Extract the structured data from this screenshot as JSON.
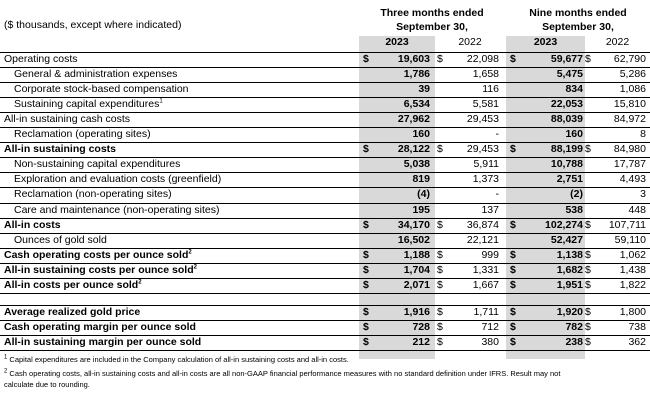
{
  "header": {
    "units_label": "($ thousands, except where indicated)",
    "group_three": [
      "Three months ended",
      "September 30,"
    ],
    "group_nine": [
      "Nine months ended",
      "September 30,"
    ],
    "year_current": "2023",
    "year_prior": "2022"
  },
  "rows": [
    {
      "label": "Operating costs",
      "indent": false,
      "bold": false,
      "dollar": true,
      "values": [
        "19,603",
        "22,098",
        "59,677",
        "62,790"
      ]
    },
    {
      "label": "General & administration expenses",
      "indent": true,
      "bold": false,
      "dollar": false,
      "values": [
        "1,786",
        "1,658",
        "5,475",
        "5,286"
      ]
    },
    {
      "label": "Corporate stock-based compensation",
      "indent": true,
      "bold": false,
      "dollar": false,
      "values": [
        "39",
        "116",
        "834",
        "1,086"
      ]
    },
    {
      "label": "Sustaining capital expenditures",
      "sup": "1",
      "indent": true,
      "bold": false,
      "dollar": false,
      "values": [
        "6,534",
        "5,581",
        "22,053",
        "15,810"
      ]
    },
    {
      "label": "All-in sustaining cash costs",
      "indent": false,
      "bold": false,
      "dollar": false,
      "values": [
        "27,962",
        "29,453",
        "88,039",
        "84,972"
      ]
    },
    {
      "label": "Reclamation (operating sites)",
      "indent": true,
      "bold": false,
      "dollar": false,
      "values": [
        "160",
        "-",
        "160",
        "8"
      ]
    },
    {
      "label": "All-in sustaining costs",
      "indent": false,
      "bold": true,
      "dollar": true,
      "values": [
        "28,122",
        "29,453",
        "88,199",
        "84,980"
      ]
    },
    {
      "label": "Non-sustaining capital expenditures",
      "indent": true,
      "bold": false,
      "dollar": false,
      "values": [
        "5,038",
        "5,911",
        "10,788",
        "17,787"
      ]
    },
    {
      "label": "Exploration and evaluation costs (greenfield)",
      "indent": true,
      "bold": false,
      "dollar": false,
      "values": [
        "819",
        "1,373",
        "2,751",
        "4,493"
      ]
    },
    {
      "label": "Reclamation (non-operating sites)",
      "indent": true,
      "bold": false,
      "dollar": false,
      "values": [
        "(4)",
        "-",
        "(2)",
        "3"
      ]
    },
    {
      "label": "Care and maintenance (non-operating sites)",
      "indent": true,
      "bold": false,
      "dollar": false,
      "values": [
        "195",
        "137",
        "538",
        "448"
      ]
    },
    {
      "label": "All-in costs",
      "indent": false,
      "bold": true,
      "dollar": true,
      "values": [
        "34,170",
        "36,874",
        "102,274",
        "107,711"
      ]
    },
    {
      "label": "Ounces of gold sold",
      "indent": true,
      "bold": false,
      "dollar": false,
      "values": [
        "16,502",
        "22,121",
        "52,427",
        "59,110"
      ]
    },
    {
      "label": "Cash operating costs per ounce sold",
      "sup": "2",
      "indent": false,
      "bold": true,
      "dollar": true,
      "values": [
        "1,188",
        "999",
        "1,138",
        "1,062"
      ]
    },
    {
      "label": "All-in sustaining costs per ounce sold",
      "sup": "2",
      "indent": false,
      "bold": true,
      "dollar": true,
      "values": [
        "1,704",
        "1,331",
        "1,682",
        "1,438"
      ]
    },
    {
      "label": "All-in costs per ounce sold",
      "sup": "2",
      "indent": false,
      "bold": true,
      "dollar": true,
      "values": [
        "2,071",
        "1,667",
        "1,951",
        "1,822"
      ]
    },
    {
      "label": "Average realized gold price",
      "indent": false,
      "bold": true,
      "dollar": true,
      "gap": true,
      "values": [
        "1,916",
        "1,711",
        "1,920",
        "1,800"
      ]
    },
    {
      "label": "Cash operating margin per ounce sold",
      "indent": false,
      "bold": true,
      "dollar": true,
      "values": [
        "728",
        "712",
        "782",
        "738"
      ]
    },
    {
      "label": "All-in sustaining margin per ounce sold",
      "indent": false,
      "bold": true,
      "dollar": true,
      "values": [
        "212",
        "380",
        "238",
        "362"
      ]
    }
  ],
  "currency_symbol": "$",
  "footnotes": [
    {
      "sup": "1",
      "lines": [
        "Capital expenditures are included in the Company calculation of all-in sustaining costs and all-in costs."
      ]
    },
    {
      "sup": "2",
      "lines": [
        "Cash operating costs, all-in sustaining costs and all-in costs are all non-GAAP financial performance measures with no standard definition under IFRS. Result may not",
        "calculate due to rounding."
      ]
    }
  ]
}
